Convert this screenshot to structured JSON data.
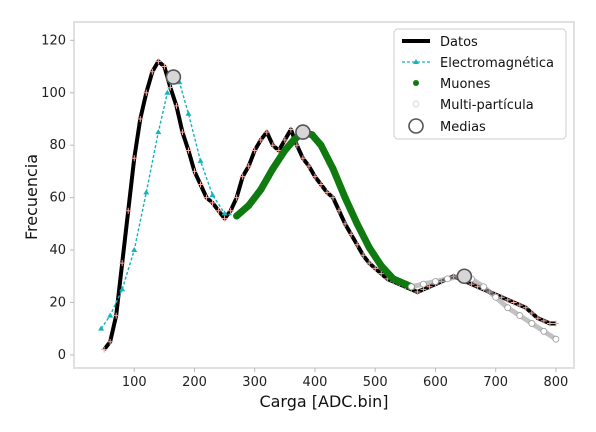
{
  "chart_data": {
    "type": "line",
    "xlabel": "Carga [ADC.bin]",
    "ylabel": "Frecuencia",
    "xlim": [
      0,
      830
    ],
    "ylim": [
      -5,
      127
    ],
    "x_ticks": [
      100,
      200,
      300,
      400,
      500,
      600,
      700,
      800
    ],
    "y_ticks": [
      0,
      20,
      40,
      60,
      80,
      100,
      120
    ],
    "grid": false,
    "legend_position": "top-right",
    "colors": {
      "datos_line": "#000000",
      "datos_marker": "#f4a9a0",
      "electromagnetica": "#17b3bd",
      "muones": "#0f7a0f",
      "multi_particula": "#9a9a9a",
      "medias_edge": "#555555",
      "medias_fill": "#d6d6d6"
    },
    "series": [
      {
        "name": "Datos",
        "style": "noisy histogram line with '+' markers",
        "x": [
          50,
          60,
          70,
          80,
          90,
          100,
          110,
          120,
          130,
          140,
          150,
          160,
          170,
          180,
          190,
          200,
          210,
          220,
          230,
          240,
          250,
          260,
          270,
          280,
          290,
          300,
          310,
          320,
          330,
          340,
          350,
          360,
          370,
          380,
          390,
          400,
          410,
          420,
          430,
          440,
          450,
          460,
          470,
          480,
          490,
          500,
          510,
          520,
          530,
          540,
          550,
          560,
          570,
          580,
          590,
          600,
          610,
          620,
          630,
          640,
          650,
          660,
          670,
          680,
          690,
          700,
          710,
          720,
          730,
          740,
          750,
          760,
          770,
          780,
          790,
          800
        ],
        "y": [
          2,
          5,
          15,
          35,
          55,
          75,
          90,
          100,
          108,
          112,
          110,
          102,
          95,
          85,
          78,
          70,
          65,
          60,
          58,
          55,
          52,
          55,
          60,
          68,
          72,
          78,
          82,
          85,
          80,
          78,
          82,
          86,
          80,
          75,
          72,
          68,
          65,
          62,
          60,
          55,
          50,
          46,
          42,
          38,
          35,
          33,
          31,
          29,
          28,
          27,
          26,
          25,
          24,
          25,
          26,
          27,
          28,
          29,
          30,
          29,
          28,
          27,
          26,
          25,
          24,
          23,
          22,
          21,
          20,
          19,
          18,
          16,
          14,
          13,
          12,
          12
        ]
      },
      {
        "name": "Electromagnética",
        "style": "dashed line with small triangle markers",
        "x": [
          45,
          60,
          80,
          100,
          120,
          140,
          155,
          165,
          175,
          190,
          210,
          230,
          250,
          270
        ],
        "y": [
          10,
          15,
          25,
          40,
          62,
          85,
          100,
          106,
          104,
          92,
          74,
          61,
          54,
          53
        ]
      },
      {
        "name": "Muones",
        "style": "dense filled circle markers",
        "x": [
          270,
          290,
          310,
          330,
          350,
          365,
          380,
          395,
          410,
          430,
          450,
          470,
          490,
          510,
          530,
          550,
          560
        ],
        "y": [
          53,
          57,
          63,
          71,
          78,
          82,
          85,
          84,
          80,
          71,
          60,
          50,
          41,
          34,
          29,
          27,
          26
        ]
      },
      {
        "name": "Multi-partícula",
        "style": "dense open circle markers",
        "x": [
          560,
          580,
          600,
          620,
          640,
          650,
          660,
          680,
          700,
          720,
          740,
          760,
          780,
          800
        ],
        "y": [
          26,
          27,
          28,
          29,
          30,
          30,
          29,
          26,
          22,
          18,
          15,
          12,
          9,
          6
        ]
      },
      {
        "name": "Medias",
        "style": "large circle markers",
        "x": [
          165,
          380,
          648
        ],
        "y": [
          106,
          85,
          30
        ]
      }
    ]
  }
}
